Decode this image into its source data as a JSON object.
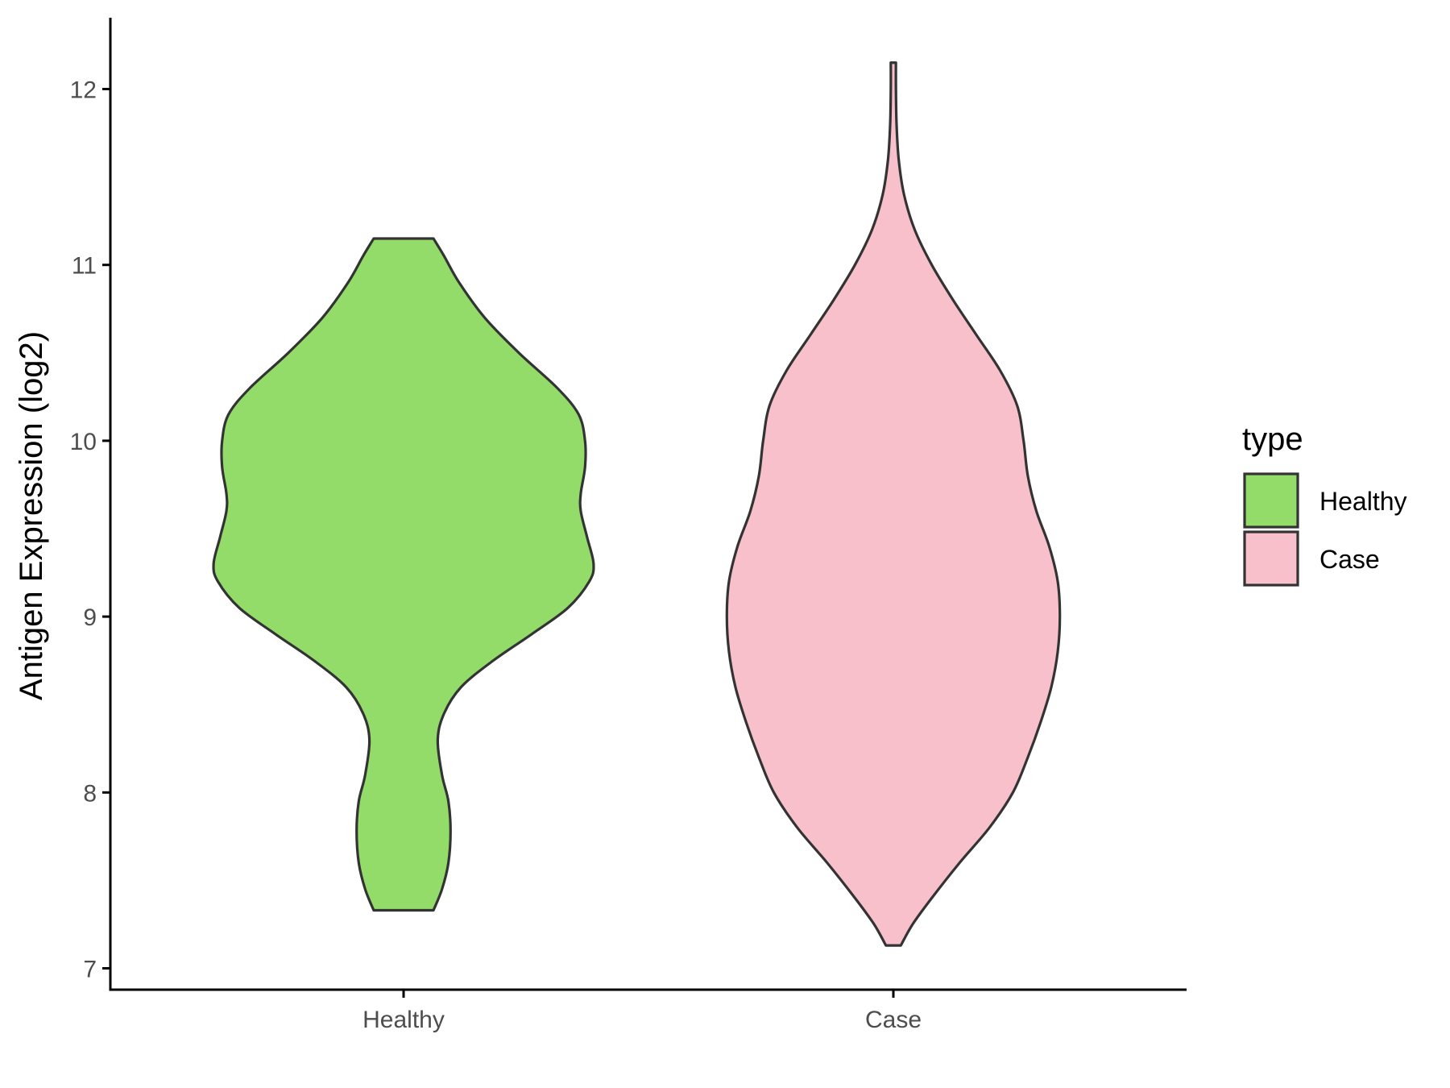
{
  "chart_data": {
    "type": "violin",
    "title": "",
    "xlabel": "",
    "ylabel": "Antigen Expression (log2)",
    "ylim": [
      6.9,
      12.5
    ],
    "yticks": [
      7,
      8,
      9,
      10,
      11,
      12
    ],
    "categories": [
      "Healthy",
      "Case"
    ],
    "grid": false,
    "legend": {
      "title": "type",
      "position": "right",
      "entries": [
        {
          "label": "Healthy",
          "color": "#93dc6a"
        },
        {
          "label": "Case",
          "color": "#f7c0cb"
        }
      ]
    },
    "series": [
      {
        "name": "Healthy",
        "color": "#93dc6a",
        "min": 7.33,
        "max": 11.15,
        "density": [
          [
            7.33,
            0.14
          ],
          [
            7.45,
            0.18
          ],
          [
            7.6,
            0.21
          ],
          [
            7.78,
            0.22
          ],
          [
            7.95,
            0.21
          ],
          [
            8.1,
            0.18
          ],
          [
            8.3,
            0.16
          ],
          [
            8.45,
            0.19
          ],
          [
            8.6,
            0.27
          ],
          [
            8.75,
            0.42
          ],
          [
            8.9,
            0.6
          ],
          [
            9.05,
            0.77
          ],
          [
            9.2,
            0.87
          ],
          [
            9.3,
            0.89
          ],
          [
            9.45,
            0.86
          ],
          [
            9.6,
            0.83
          ],
          [
            9.7,
            0.83
          ],
          [
            9.85,
            0.85
          ],
          [
            10.0,
            0.85
          ],
          [
            10.15,
            0.82
          ],
          [
            10.3,
            0.72
          ],
          [
            10.5,
            0.54
          ],
          [
            10.7,
            0.38
          ],
          [
            10.9,
            0.26
          ],
          [
            11.05,
            0.19
          ],
          [
            11.15,
            0.14
          ]
        ]
      },
      {
        "name": "Case",
        "color": "#f7c0cb",
        "min": 7.13,
        "max": 12.15,
        "density": [
          [
            7.13,
            0.035
          ],
          [
            7.25,
            0.09
          ],
          [
            7.4,
            0.18
          ],
          [
            7.6,
            0.31
          ],
          [
            7.8,
            0.45
          ],
          [
            8.0,
            0.56
          ],
          [
            8.2,
            0.63
          ],
          [
            8.4,
            0.69
          ],
          [
            8.6,
            0.74
          ],
          [
            8.8,
            0.77
          ],
          [
            9.0,
            0.78
          ],
          [
            9.2,
            0.77
          ],
          [
            9.4,
            0.73
          ],
          [
            9.6,
            0.67
          ],
          [
            9.8,
            0.63
          ],
          [
            10.0,
            0.61
          ],
          [
            10.2,
            0.58
          ],
          [
            10.4,
            0.5
          ],
          [
            10.6,
            0.39
          ],
          [
            10.8,
            0.28
          ],
          [
            11.0,
            0.18
          ],
          [
            11.2,
            0.1
          ],
          [
            11.4,
            0.05
          ],
          [
            11.6,
            0.025
          ],
          [
            11.8,
            0.015
          ],
          [
            12.0,
            0.012
          ],
          [
            12.15,
            0.012
          ]
        ]
      }
    ]
  }
}
